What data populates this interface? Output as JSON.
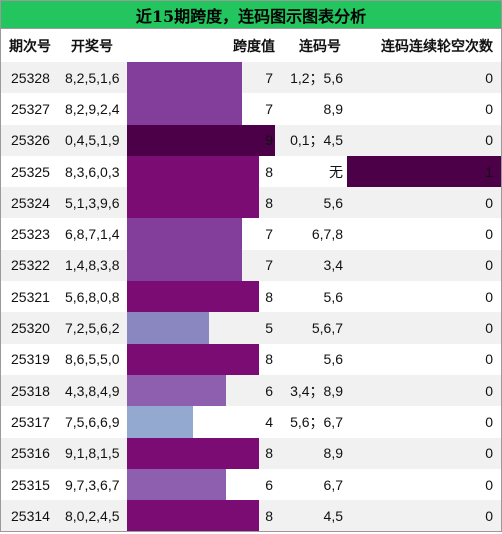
{
  "title": "近15期跨度，连码图示图表分析",
  "headers": {
    "period": "期次号",
    "draw": "开奖号",
    "span": "跨度值",
    "lianma": "连码号",
    "count": "连码连续轮空次数"
  },
  "span_max": 9,
  "count_max": 1,
  "colors": {
    "span_4": "#94a9d0",
    "span_5": "#8a86c0",
    "span_6": "#8d5fae",
    "span_7": "#833e9b",
    "span_8": "#7a0c74",
    "span_9": "#4b0047",
    "count_bar": "#4b0047"
  },
  "rows": [
    {
      "period": "25328",
      "draw": "8,2,5,1,6",
      "span": 7,
      "lianma": "1,2；5,6",
      "count": 0
    },
    {
      "period": "25327",
      "draw": "8,2,9,2,4",
      "span": 7,
      "lianma": "8,9",
      "count": 0
    },
    {
      "period": "25326",
      "draw": "0,4,5,1,9",
      "span": 9,
      "lianma": "0,1；4,5",
      "count": 0
    },
    {
      "period": "25325",
      "draw": "8,3,6,0,3",
      "span": 8,
      "lianma": "无",
      "count": 1
    },
    {
      "period": "25324",
      "draw": "5,1,3,9,6",
      "span": 8,
      "lianma": "5,6",
      "count": 0
    },
    {
      "period": "25323",
      "draw": "6,8,7,1,4",
      "span": 7,
      "lianma": "6,7,8",
      "count": 0
    },
    {
      "period": "25322",
      "draw": "1,4,8,3,8",
      "span": 7,
      "lianma": "3,4",
      "count": 0
    },
    {
      "period": "25321",
      "draw": "5,6,8,0,8",
      "span": 8,
      "lianma": "5,6",
      "count": 0
    },
    {
      "period": "25320",
      "draw": "7,2,5,6,2",
      "span": 5,
      "lianma": "5,6,7",
      "count": 0
    },
    {
      "period": "25319",
      "draw": "8,6,5,5,0",
      "span": 8,
      "lianma": "5,6",
      "count": 0
    },
    {
      "period": "25318",
      "draw": "4,3,8,4,9",
      "span": 6,
      "lianma": "3,4；8,9",
      "count": 0
    },
    {
      "period": "25317",
      "draw": "7,5,6,6,9",
      "span": 4,
      "lianma": "5,6；6,7",
      "count": 0
    },
    {
      "period": "25316",
      "draw": "9,1,8,1,5",
      "span": 8,
      "lianma": "8,9",
      "count": 0
    },
    {
      "period": "25315",
      "draw": "9,7,3,6,7",
      "span": 6,
      "lianma": "6,7",
      "count": 0
    },
    {
      "period": "25314",
      "draw": "8,0,2,4,5",
      "span": 8,
      "lianma": "4,5",
      "count": 0
    }
  ]
}
